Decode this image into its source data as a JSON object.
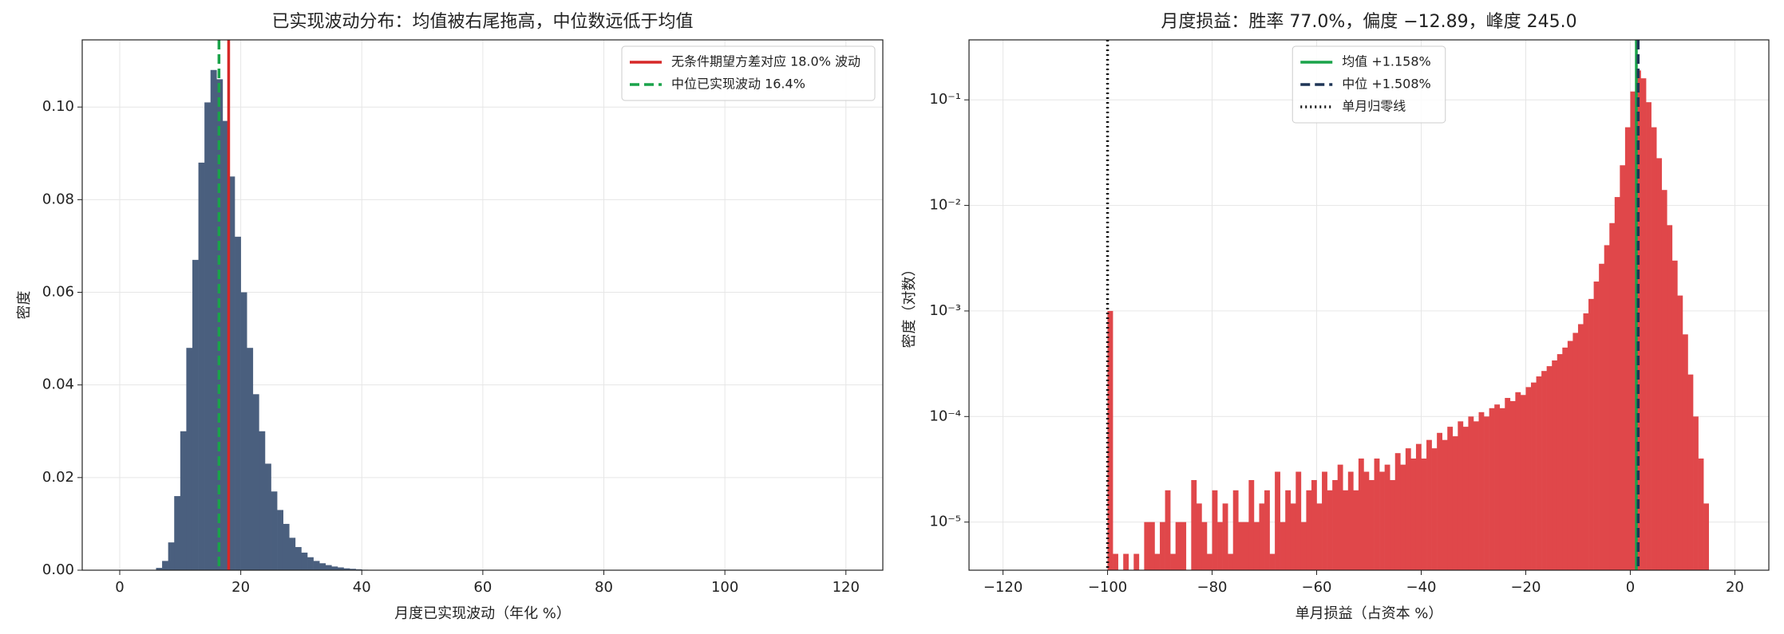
{
  "chart_data": [
    {
      "type": "histogram",
      "title": "已实现波动分布：均值被右尾拖高，中位数远低于均值",
      "xlabel": "月度已实现波动（年化 %）",
      "ylabel": "密度",
      "bins": [
        6,
        7,
        8,
        9,
        10,
        11,
        12,
        13,
        14,
        15,
        16,
        17,
        18,
        19,
        20,
        21,
        22,
        23,
        24,
        25,
        26,
        27,
        28,
        29,
        30,
        31,
        32,
        33,
        34,
        35,
        36,
        37,
        38,
        39,
        40,
        41,
        42
      ],
      "values": [
        0.0005,
        0.002,
        0.006,
        0.016,
        0.03,
        0.048,
        0.067,
        0.088,
        0.101,
        0.108,
        0.106,
        0.097,
        0.085,
        0.072,
        0.06,
        0.048,
        0.038,
        0.03,
        0.023,
        0.017,
        0.013,
        0.01,
        0.007,
        0.005,
        0.0038,
        0.0028,
        0.002,
        0.0015,
        0.0011,
        0.0008,
        0.0006,
        0.0004,
        0.0003,
        0.0002,
        0.0001,
        5e-05
      ],
      "color": "#4a5f7e",
      "xlim": [
        -6.2,
        126.1
      ],
      "ylim": [
        0,
        0.1145
      ],
      "xticks": [
        0,
        20,
        40,
        60,
        80,
        100,
        120
      ],
      "yticks": [
        {
          "value": 0,
          "label": "0.00"
        },
        {
          "value": 0.02,
          "label": "0.02"
        },
        {
          "value": 0.04,
          "label": "0.04"
        },
        {
          "value": 0.06,
          "label": "0.06"
        },
        {
          "value": 0.08,
          "label": "0.08"
        },
        {
          "value": 0.1,
          "label": "0.10"
        }
      ],
      "yscale": "linear",
      "grid": true,
      "legend": "upper right",
      "lines": [
        {
          "name": "无条件期望方差对应 18.0% 波动",
          "x": 18.0,
          "color": "#d62828",
          "dash": "solid"
        },
        {
          "name": "中位已实现波动 16.4%",
          "x": 16.4,
          "color": "#1aa34a",
          "dash": "dashed"
        }
      ]
    },
    {
      "type": "histogram",
      "title": "月度损益：胜率 77.0%，偏度 −12.89，峰度 245.0",
      "xlabel": "单月损益（占资本 %）",
      "ylabel": "密度（对数）",
      "bins": [
        -100,
        -99,
        -98,
        -97,
        -96,
        -95,
        -94,
        -93,
        -92,
        -91,
        -90,
        -89,
        -88,
        -87,
        -86,
        -85,
        -84,
        -83,
        -82,
        -81,
        -80,
        -79,
        -78,
        -77,
        -76,
        -75,
        -74,
        -73,
        -72,
        -71,
        -70,
        -69,
        -68,
        -67,
        -66,
        -65,
        -64,
        -63,
        -62,
        -61,
        -60,
        -59,
        -58,
        -57,
        -56,
        -55,
        -54,
        -53,
        -52,
        -51,
        -50,
        -49,
        -48,
        -47,
        -46,
        -45,
        -44,
        -43,
        -42,
        -41,
        -40,
        -39,
        -38,
        -37,
        -36,
        -35,
        -34,
        -33,
        -32,
        -31,
        -30,
        -29,
        -28,
        -27,
        -26,
        -25,
        -24,
        -23,
        -22,
        -21,
        -20,
        -19,
        -18,
        -17,
        -16,
        -15,
        -14,
        -13,
        -12,
        -11,
        -10,
        -9,
        -8,
        -7,
        -6,
        -5,
        -4,
        -3,
        -2,
        -1,
        0,
        1,
        2,
        3,
        4,
        5,
        6,
        7,
        8,
        9,
        10,
        11,
        12,
        13,
        14,
        15
      ],
      "values": [
        0.001,
        5e-06,
        0,
        5e-06,
        0,
        5e-06,
        0,
        1e-05,
        1e-05,
        5e-06,
        1e-05,
        2e-05,
        5e-06,
        1e-05,
        1e-05,
        0,
        2.5e-05,
        1.5e-05,
        1e-05,
        5e-06,
        2e-05,
        1e-05,
        1.5e-05,
        5e-06,
        2e-05,
        1e-05,
        1e-05,
        2.5e-05,
        1e-05,
        1.5e-05,
        2e-05,
        5e-06,
        3e-05,
        1e-05,
        2e-05,
        1.5e-05,
        3e-05,
        1e-05,
        2e-05,
        2.5e-05,
        1.5e-05,
        3e-05,
        2e-05,
        2.5e-05,
        3.5e-05,
        2e-05,
        3e-05,
        2e-05,
        4e-05,
        3e-05,
        2.5e-05,
        4e-05,
        3e-05,
        3.5e-05,
        2.5e-05,
        4.5e-05,
        3.5e-05,
        5e-05,
        4e-05,
        5.5e-05,
        4e-05,
        6e-05,
        5e-05,
        7e-05,
        6e-05,
        8e-05,
        6.5e-05,
        9e-05,
        8e-05,
        0.0001,
        9e-05,
        0.00011,
        0.0001,
        0.00012,
        0.00013,
        0.00012,
        0.00015,
        0.00014,
        0.00017,
        0.00016,
        0.00019,
        0.00021,
        0.00024,
        0.00027,
        0.0003,
        0.00034,
        0.00039,
        0.00045,
        0.00052,
        0.00062,
        0.00075,
        0.00095,
        0.0013,
        0.0019,
        0.0028,
        0.0042,
        0.0068,
        0.012,
        0.024,
        0.055,
        0.12,
        0.19,
        0.16,
        0.095,
        0.055,
        0.028,
        0.014,
        0.0065,
        0.003,
        0.0014,
        0.0006,
        0.00025,
        0.0001,
        4e-05,
        1.5e-05
      ],
      "color": "#e0474a",
      "xlim": [
        -126.5,
        26.5
      ],
      "ylim": [
        3.5e-06,
        0.37
      ],
      "xticks": [
        {
          "value": -120,
          "label": "−120"
        },
        {
          "value": -100,
          "label": "−100"
        },
        {
          "value": -80,
          "label": "−80"
        },
        {
          "value": -60,
          "label": "−60"
        },
        {
          "value": -40,
          "label": "−40"
        },
        {
          "value": -20,
          "label": "−20"
        },
        0,
        20
      ],
      "yticks": [
        {
          "value": 1e-05,
          "label": "10⁻⁵"
        },
        {
          "value": 0.0001,
          "label": "10⁻⁴"
        },
        {
          "value": 0.001,
          "label": "10⁻³"
        },
        {
          "value": 0.01,
          "label": "10⁻²"
        },
        {
          "value": 0.1,
          "label": "10⁻¹"
        }
      ],
      "yscale": "log",
      "grid": true,
      "legend": "upper center",
      "lines": [
        {
          "name": "均值 +1.158%",
          "x": 1.158,
          "color": "#1aa34a",
          "dash": "solid"
        },
        {
          "name": "中位 +1.508%",
          "x": 1.508,
          "color": "#1f3556",
          "dash": "dashed"
        },
        {
          "name": "单月归零线",
          "x": -100,
          "color": "#111111",
          "dash": "dotted"
        }
      ]
    }
  ]
}
